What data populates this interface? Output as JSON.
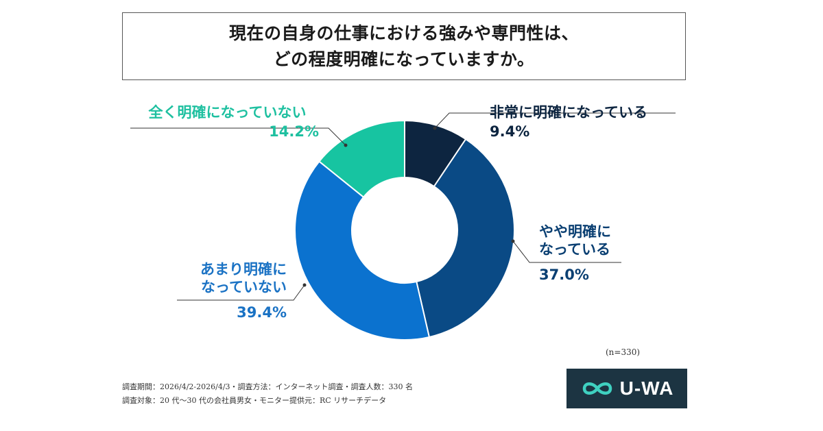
{
  "title": {
    "line1": "現在の自身の仕事における強みや専門性は、",
    "line2": "どの程度明確になっていますか。"
  },
  "chart_data": {
    "type": "pie",
    "donut": true,
    "categories": [
      "非常に明確になっている",
      "やや明確になっている",
      "あまり明確になっていない",
      "全く明確になっていない"
    ],
    "values": [
      9.4,
      37.0,
      39.4,
      14.2
    ],
    "labels": [
      {
        "name_lines": [
          "非常に明確になっている"
        ],
        "pct": "9.4%"
      },
      {
        "name_lines": [
          "やや明確に",
          "なっている"
        ],
        "pct": "37.0%"
      },
      {
        "name_lines": [
          "あまり明確に",
          "なっていない"
        ],
        "pct": "39.4%"
      },
      {
        "name_lines": [
          "全く明確になっていない"
        ],
        "pct": "14.2%"
      }
    ],
    "colors": [
      "#0d2540",
      "#0a4a85",
      "#0b72cf",
      "#17c4a1"
    ],
    "sample_note": "(n=330)"
  },
  "footer": {
    "line1": "調査期間：2026/4/2-2026/4/3・調査方法：インターネット調査・調査人数：330 名",
    "line2": "調査対象：20 代〜30 代の会社員男女・モニター提供元：RC リサーチデータ"
  },
  "logo": {
    "text": "U-WA",
    "icon": "infinity-icon",
    "bg": "#1c3442"
  }
}
